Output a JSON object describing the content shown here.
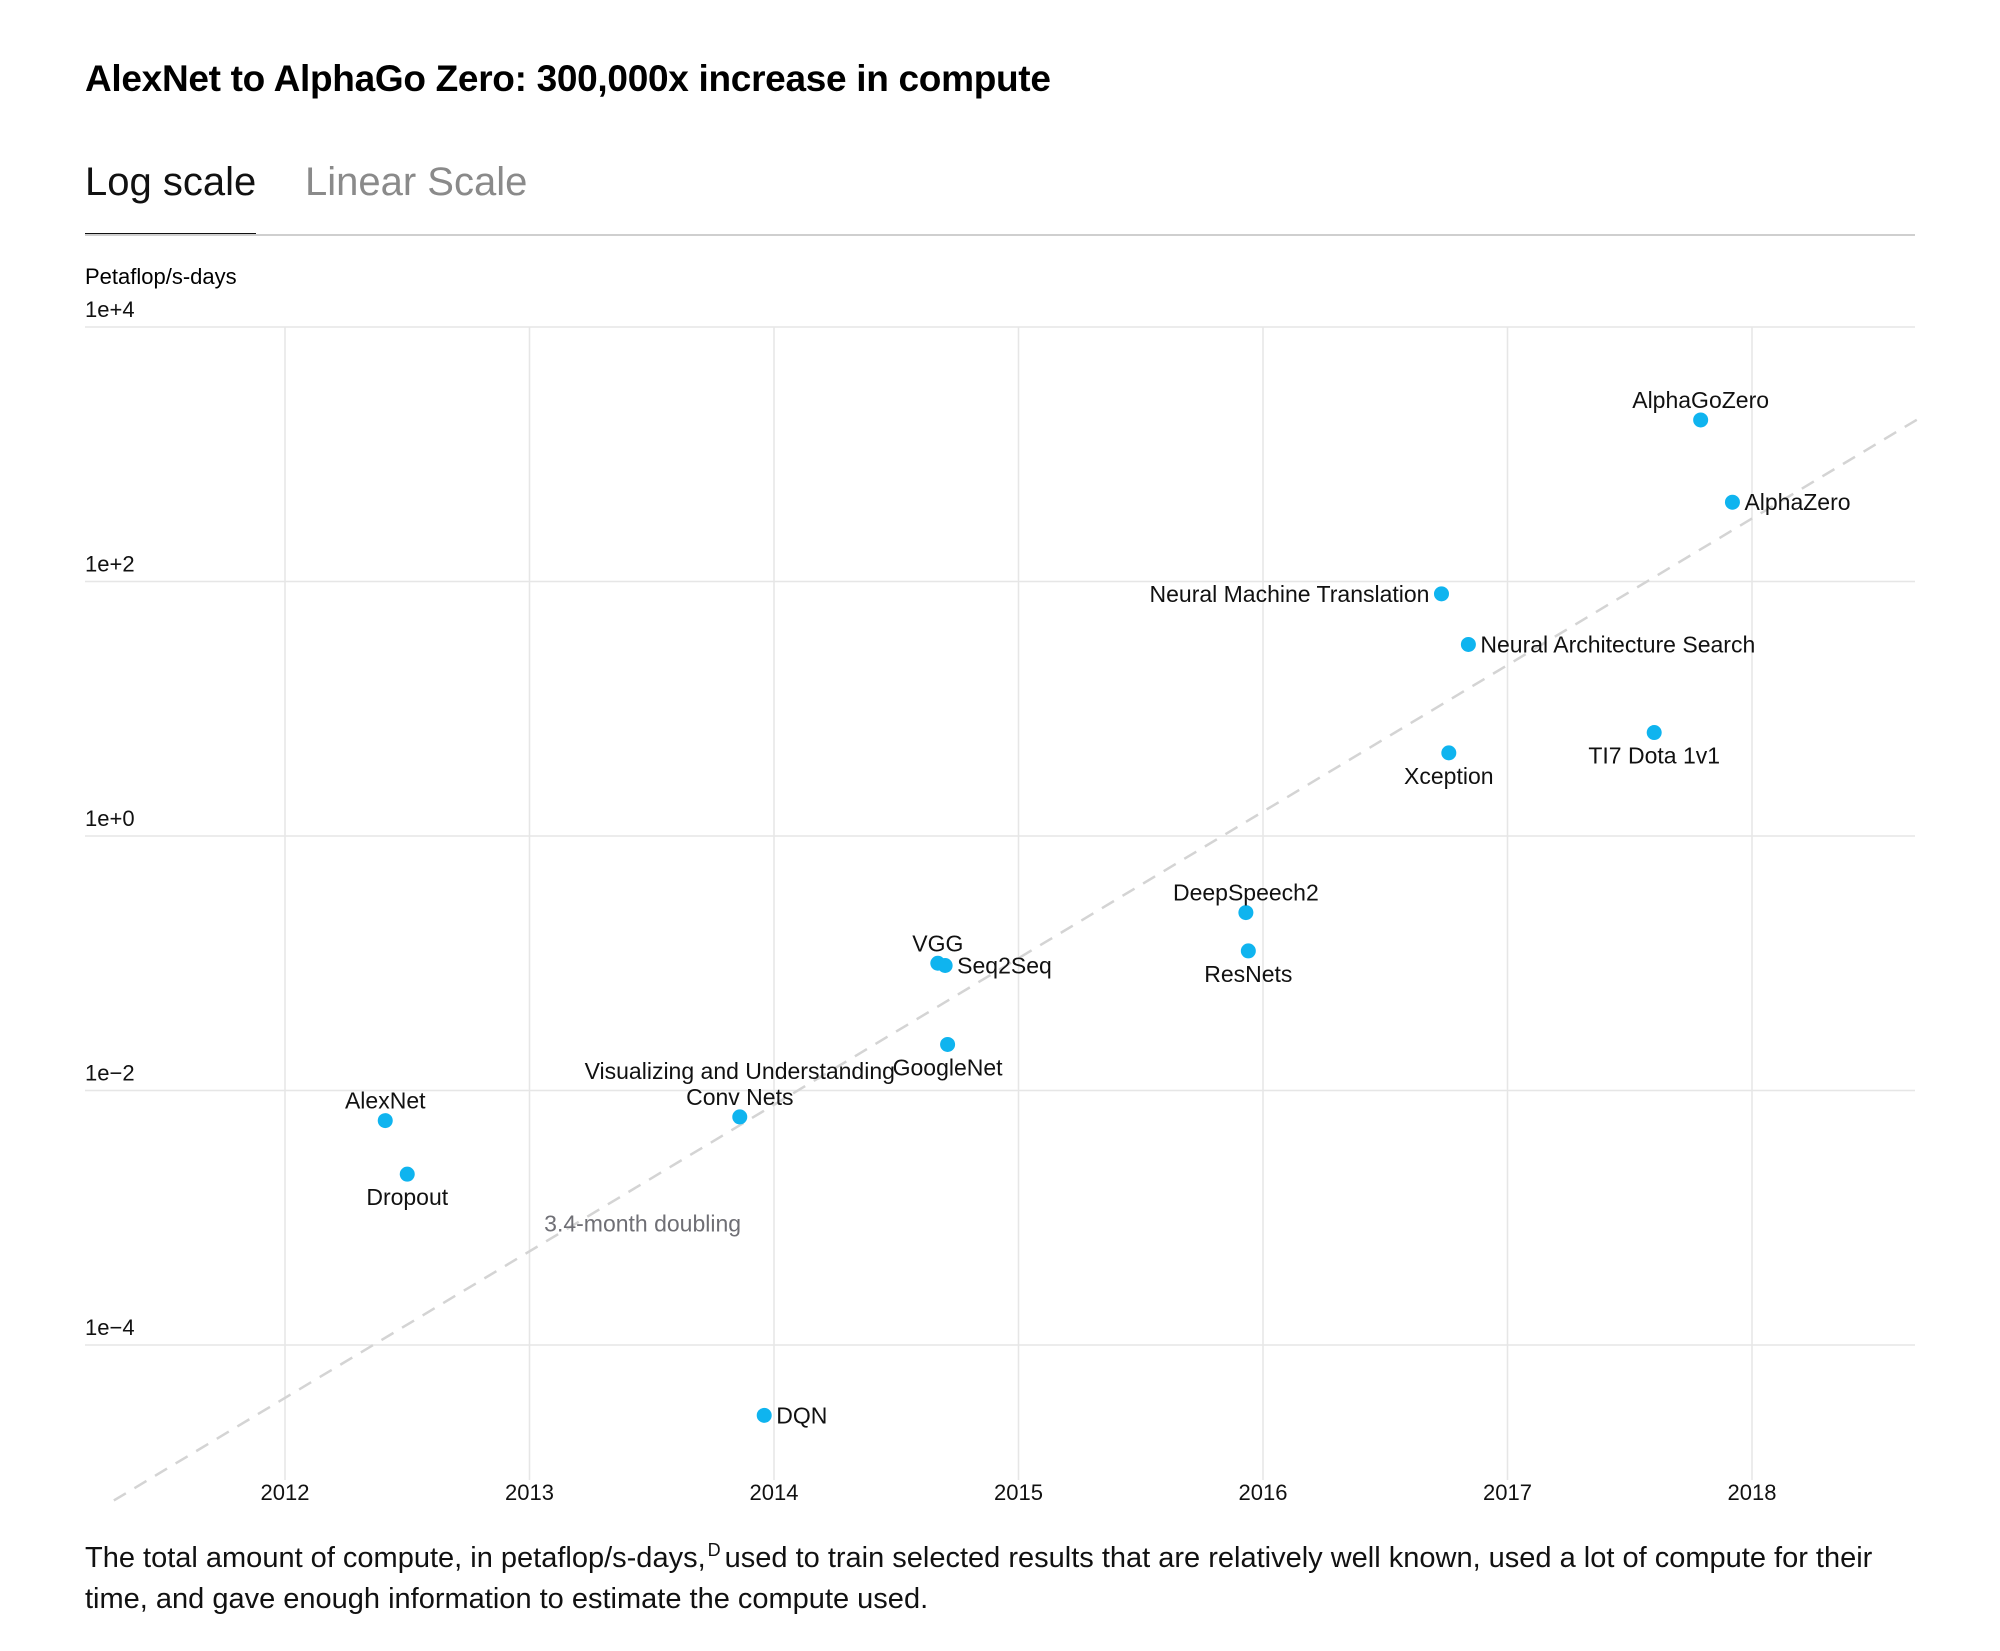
{
  "title": "AlexNet to AlphaGo Zero: 300,000x increase in compute",
  "tabs": [
    {
      "label": "Log scale",
      "active": true
    },
    {
      "label": "Linear Scale",
      "active": false
    }
  ],
  "caption": {
    "text_before": "The total amount of compute, in petaflop/s-days,",
    "superscript": "D",
    "text_after": "used to train selected results that are relatively well known, used a lot of compute for their time, and gave enough information to estimate the compute used."
  },
  "colors": {
    "point": "#0fb4ef",
    "trend": "#d4d4d4",
    "grid": "#e6e6e6",
    "trend_label": "#6f6f75"
  },
  "chart_data": {
    "type": "scatter",
    "title": "AlexNet to AlphaGo Zero: 300,000x increase in compute",
    "ylabel": "Petaflop/s-days",
    "xlabel": "",
    "yscale": "log",
    "x_ticks": [
      "2012",
      "2013",
      "2014",
      "2015",
      "2016",
      "2017",
      "2018"
    ],
    "y_ticks": [
      "1e+4",
      "1e+2",
      "1e+0",
      "1e−2",
      "1e−4"
    ],
    "xlim": [
      2011.2,
      2018.7
    ],
    "ylim": [
      5e-06,
      10000
    ],
    "grid": true,
    "trend_label": "3.4-month doubling",
    "trend_line": {
      "x": [
        2011.3,
        2018.7
      ],
      "y": [
        6e-06,
        2000
      ]
    },
    "points": [
      {
        "name": "AlexNet",
        "x": 2012.41,
        "y": 0.0058,
        "label_pos": "above"
      },
      {
        "name": "Dropout",
        "x": 2012.5,
        "y": 0.0022,
        "label_pos": "below"
      },
      {
        "name": "Visualizing and Understanding Conv Nets",
        "lines": [
          "Visualizing and Understanding",
          "Conv Nets"
        ],
        "x": 2013.86,
        "y": 0.0062,
        "label_pos": "above"
      },
      {
        "name": "DQN",
        "x": 2013.96,
        "y": 2.8e-05,
        "label_pos": "right"
      },
      {
        "name": "GoogleNet",
        "x": 2014.71,
        "y": 0.023,
        "label_pos": "below"
      },
      {
        "name": "VGG",
        "x": 2014.67,
        "y": 0.1,
        "label_pos": "above"
      },
      {
        "name": "Seq2Seq",
        "x": 2014.7,
        "y": 0.096,
        "label_pos": "right"
      },
      {
        "name": "DeepSpeech2",
        "x": 2015.93,
        "y": 0.25,
        "label_pos": "above"
      },
      {
        "name": "ResNets",
        "x": 2015.94,
        "y": 0.125,
        "label_pos": "below"
      },
      {
        "name": "Xception",
        "x": 2016.76,
        "y": 4.5,
        "label_pos": "below"
      },
      {
        "name": "Neural Machine Translation",
        "x": 2016.73,
        "y": 80,
        "label_pos": "left"
      },
      {
        "name": "Neural Architecture Search",
        "x": 2016.84,
        "y": 32,
        "label_pos": "right"
      },
      {
        "name": "TI7 Dota 1v1",
        "x": 2017.6,
        "y": 6.5,
        "label_pos": "below"
      },
      {
        "name": "AlphaGoZero",
        "x": 2017.79,
        "y": 1860,
        "label_pos": "above"
      },
      {
        "name": "AlphaZero",
        "x": 2017.92,
        "y": 420,
        "label_pos": "right"
      }
    ]
  }
}
